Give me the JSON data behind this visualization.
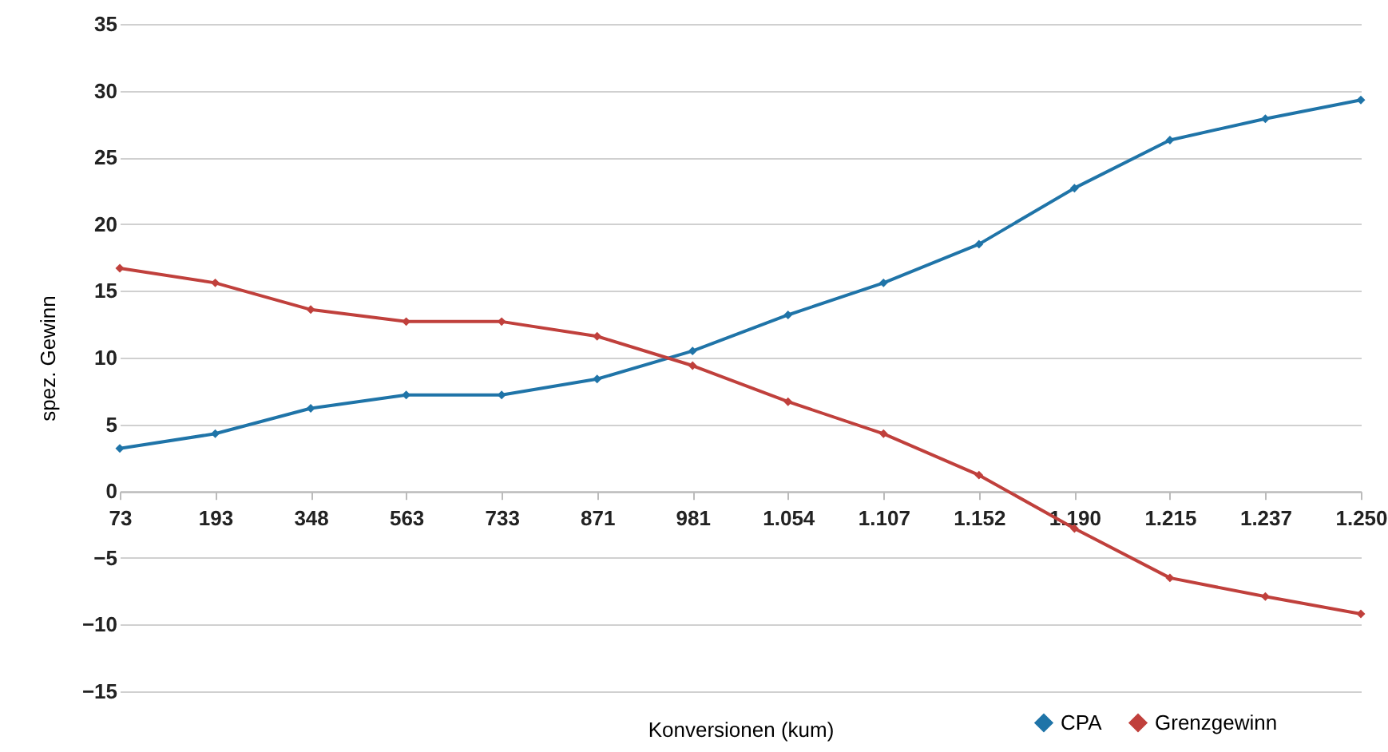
{
  "chart_data": {
    "type": "line",
    "xlabel": "Konversionen (kum)",
    "ylabel": "spez. Gewinn",
    "categories": [
      "73",
      "193",
      "348",
      "563",
      "733",
      "871",
      "981",
      "1.054",
      "1.107",
      "1.152",
      "1.190",
      "1.215",
      "1.237",
      "1.250"
    ],
    "series": [
      {
        "name": "CPA",
        "color": "#1f74a8",
        "values": [
          3.2,
          4.3,
          6.2,
          7.2,
          7.2,
          8.4,
          10.5,
          13.2,
          15.6,
          18.5,
          22.7,
          26.3,
          27.9,
          29.3
        ]
      },
      {
        "name": "Grenzgewinn",
        "color": "#c0403c",
        "values": [
          16.7,
          15.6,
          13.6,
          12.7,
          12.7,
          11.6,
          9.4,
          6.7,
          4.3,
          1.2,
          -2.8,
          -6.5,
          -7.9,
          -9.2
        ]
      }
    ],
    "ylim": [
      -15,
      35
    ],
    "yticks": [
      -15,
      -10,
      -5,
      0,
      5,
      10,
      15,
      20,
      25,
      30,
      35
    ],
    "grid": "y",
    "legend": "bottom right",
    "marker": "diamond",
    "line_style": "solid"
  }
}
